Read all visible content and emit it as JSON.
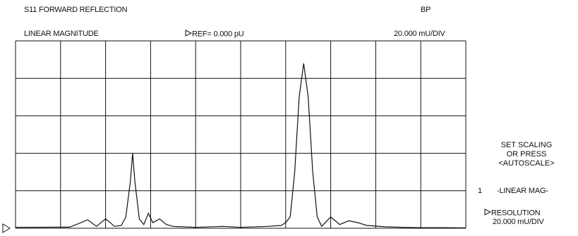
{
  "header": {
    "measurement": "S11 FORWARD REFLECTION",
    "format": "LINEAR MAGNITUDE",
    "reference": "REF= 0.000 pU",
    "mode": "BP",
    "scale": "20.000 mU/DIV"
  },
  "menu": {
    "prompt_lines": [
      "SET SCALING",
      "OR PRESS",
      "<AUTOSCALE>"
    ],
    "item_number": "1",
    "item_label": "-LINEAR MAG-",
    "resolution_label": "RESOLUTION",
    "resolution_value": "20.000 mU/DIV"
  },
  "chart_data": {
    "type": "line",
    "grid": true,
    "x_divisions": 10,
    "y_divisions": 5,
    "y_per_division": 20,
    "y_unit": "mU",
    "reference_value": 0,
    "ylim": [
      0,
      100
    ],
    "series": [
      {
        "values_x_div": [
          0.0,
          1.2,
          1.4,
          1.6,
          1.8,
          2.0,
          2.2,
          2.35,
          2.45,
          2.55,
          2.6,
          2.65,
          2.75,
          2.85,
          2.95,
          3.05,
          3.2,
          3.35,
          3.5,
          4.0,
          4.6,
          5.0,
          5.6,
          5.9,
          6.0,
          6.1,
          6.2,
          6.3,
          6.4,
          6.5,
          6.6,
          6.7,
          6.8,
          7.0,
          7.2,
          7.4,
          7.6,
          7.8,
          8.2,
          8.6,
          9.0,
          9.5,
          10.0
        ],
        "values_y": [
          0.5,
          0.6,
          2.5,
          4.5,
          1.0,
          5.0,
          1.0,
          1.5,
          6.0,
          25.0,
          40.0,
          25.0,
          5.0,
          2.0,
          8.0,
          3.0,
          5.0,
          2.0,
          1.0,
          0.5,
          1.0,
          0.5,
          1.0,
          1.5,
          3.0,
          6.0,
          30.0,
          70.0,
          88.0,
          70.0,
          30.0,
          6.0,
          1.0,
          6.0,
          2.0,
          4.0,
          3.0,
          1.5,
          0.8,
          0.5,
          0.3,
          0.3,
          0.2
        ]
      }
    ]
  }
}
